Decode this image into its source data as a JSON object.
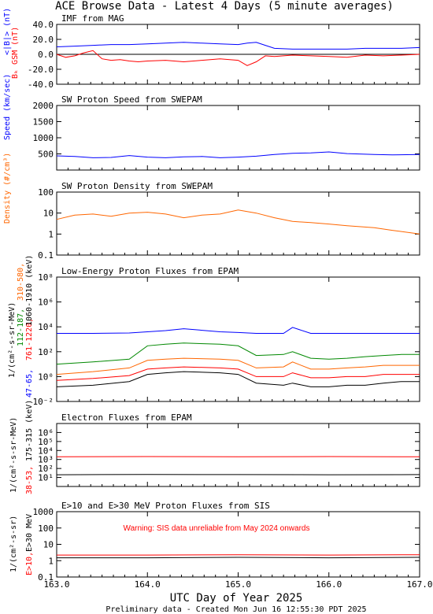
{
  "page": {
    "title": "ACE Browse Data - Latest 4 Days (5 minute averages)",
    "xlabel": "UTC Day of Year 2025",
    "footer": "Preliminary data - Created Mon Jun 16 12:55:30 PDT 2025"
  },
  "chart_data": [
    {
      "type": "line",
      "title": "IMF from MAG",
      "ylabel_parts": [
        {
          "text": "<|B|> (nT)",
          "color": "#0000ff"
        },
        {
          "text": "Bₖ GSM (nT)",
          "color": "#ff0000"
        }
      ],
      "ylim": [
        -40,
        40
      ],
      "yscale": "linear",
      "yticks": [
        -40,
        -20,
        0,
        20,
        40
      ],
      "ytick_labels": [
        "-40.0",
        "-20.0",
        "0.0",
        "20.0",
        "40.0"
      ],
      "zero_line": true,
      "xlim": [
        163.0,
        167.0
      ],
      "series": [
        {
          "color": "#0000ff",
          "x": [
            163.0,
            163.2,
            163.4,
            163.6,
            163.8,
            164.0,
            164.2,
            164.4,
            164.6,
            164.8,
            165.0,
            165.1,
            165.2,
            165.3,
            165.4,
            165.6,
            165.8,
            166.0,
            166.2,
            166.4,
            166.6,
            166.8,
            167.0
          ],
          "y": [
            10,
            11,
            12,
            13,
            13,
            14,
            15,
            16,
            15,
            14,
            13,
            15,
            16,
            12,
            8,
            7,
            7,
            7,
            7,
            8,
            8,
            8,
            9
          ]
        },
        {
          "color": "#ff0000",
          "x": [
            163.0,
            163.1,
            163.2,
            163.3,
            163.4,
            163.5,
            163.6,
            163.7,
            163.8,
            163.9,
            164.0,
            164.2,
            164.4,
            164.6,
            164.8,
            165.0,
            165.1,
            165.2,
            165.3,
            165.4,
            165.5,
            165.6,
            165.8,
            166.0,
            166.2,
            166.4,
            166.6,
            166.8,
            167.0
          ],
          "y": [
            0,
            -4,
            -2,
            2,
            5,
            -6,
            -8,
            -7,
            -9,
            -10,
            -9,
            -8,
            -10,
            -8,
            -6,
            -8,
            -15,
            -10,
            -2,
            -3,
            -2,
            -1,
            -2,
            -3,
            -4,
            -1,
            -2,
            -1,
            0
          ]
        }
      ]
    },
    {
      "type": "line",
      "title": "SW Proton Speed from SWEPAM",
      "ylabel_parts": [
        {
          "text": "Speed (km/sec)",
          "color": "#0000ff"
        }
      ],
      "ylim": [
        0,
        2000
      ],
      "yscale": "linear",
      "yticks": [
        500,
        1000,
        1500,
        2000
      ],
      "ytick_labels": [
        "500",
        "1000",
        "1500",
        "2000"
      ],
      "xlim": [
        163.0,
        167.0
      ],
      "series": [
        {
          "color": "#0000ff",
          "x": [
            163.0,
            163.2,
            163.4,
            163.6,
            163.8,
            164.0,
            164.2,
            164.4,
            164.6,
            164.8,
            165.0,
            165.2,
            165.4,
            165.6,
            165.8,
            166.0,
            166.2,
            166.5,
            166.7,
            167.0
          ],
          "y": [
            440,
            420,
            380,
            390,
            450,
            400,
            380,
            410,
            420,
            380,
            400,
            430,
            480,
            520,
            530,
            560,
            510,
            480,
            470,
            480
          ]
        }
      ]
    },
    {
      "type": "line",
      "title": "SW Proton Density from SWEPAM",
      "ylabel_parts": [
        {
          "text": "Density (#/cm³)",
          "color": "#ff6600"
        }
      ],
      "ylim": [
        0.1,
        100
      ],
      "yscale": "log",
      "yticks": [
        0.1,
        1,
        10,
        100
      ],
      "ytick_labels": [
        "0.1",
        "1",
        "10",
        "100"
      ],
      "xlim": [
        163.0,
        167.0
      ],
      "series": [
        {
          "color": "#ff6600",
          "x": [
            163.0,
            163.2,
            163.4,
            163.6,
            163.8,
            164.0,
            164.2,
            164.4,
            164.6,
            164.8,
            165.0,
            165.2,
            165.4,
            165.6,
            165.8,
            166.0,
            166.2,
            166.5,
            166.7,
            167.0
          ],
          "y": [
            5,
            8,
            9,
            7,
            10,
            11,
            9,
            6,
            8,
            9,
            14,
            10,
            6,
            4,
            3.5,
            3,
            2.5,
            2,
            1.5,
            1
          ]
        }
      ]
    },
    {
      "type": "line",
      "title": "Low-Energy Proton Fluxes from EPAM",
      "ylabel_parts": [
        {
          "text": "47-65,",
          "color": "#0000ff"
        },
        {
          "text": "761-1220,",
          "color": "#ff0000"
        },
        {
          "text": "112-187,",
          "color": "#008800"
        },
        {
          "text": "1060-1910 (keV)",
          "color": "#000000"
        },
        {
          "text": "310-580,",
          "color": "#ff6600"
        },
        {
          "text": "1/(cm²-s-sr-MeV)",
          "color": "#000000"
        }
      ],
      "ylim": [
        0.01,
        100000000
      ],
      "yscale": "log",
      "yticks": [
        0.01,
        1,
        100,
        10000,
        1000000,
        100000000
      ],
      "ytick_labels": [
        "10⁻²",
        "10⁰",
        "10²",
        "10⁴",
        "10⁶",
        "10⁸"
      ],
      "xlim": [
        163.0,
        167.0
      ],
      "series": [
        {
          "color": "#0000ff",
          "x": [
            163.0,
            163.4,
            163.8,
            164.0,
            164.2,
            164.4,
            164.8,
            165.0,
            165.2,
            165.5,
            165.6,
            165.8,
            166.0,
            166.2,
            166.4,
            166.6,
            166.8,
            167.0
          ],
          "y": [
            3000,
            3000,
            3200,
            4000,
            5000,
            7000,
            4000,
            3500,
            3000,
            3000,
            9000,
            3000,
            3000,
            3000,
            3000,
            3000,
            3000,
            3000
          ]
        },
        {
          "color": "#008800",
          "x": [
            163.0,
            163.4,
            163.8,
            164.0,
            164.2,
            164.4,
            164.8,
            165.0,
            165.2,
            165.5,
            165.6,
            165.8,
            166.0,
            166.2,
            166.4,
            166.6,
            166.8,
            167.0
          ],
          "y": [
            10,
            15,
            25,
            300,
            400,
            500,
            400,
            300,
            50,
            60,
            100,
            30,
            25,
            30,
            40,
            50,
            60,
            60
          ]
        },
        {
          "color": "#ff6600",
          "x": [
            163.0,
            163.4,
            163.8,
            164.0,
            164.2,
            164.4,
            164.8,
            165.0,
            165.2,
            165.5,
            165.6,
            165.8,
            166.0,
            166.2,
            166.4,
            166.6,
            166.8,
            167.0
          ],
          "y": [
            1.5,
            2.5,
            5,
            20,
            25,
            30,
            25,
            20,
            5,
            6,
            15,
            4,
            4,
            5,
            6,
            8,
            8,
            8
          ]
        },
        {
          "color": "#ff0000",
          "x": [
            163.0,
            163.4,
            163.8,
            164.0,
            164.2,
            164.4,
            164.8,
            165.0,
            165.2,
            165.5,
            165.6,
            165.8,
            166.0,
            166.2,
            166.4,
            166.6,
            166.8,
            167.0
          ],
          "y": [
            0.5,
            0.7,
            1.2,
            4,
            5,
            6,
            5,
            4,
            1,
            1,
            2,
            0.8,
            0.8,
            1,
            1,
            1.5,
            1.5,
            1.5
          ]
        },
        {
          "color": "#000000",
          "x": [
            163.0,
            163.4,
            163.8,
            164.0,
            164.2,
            164.4,
            164.8,
            165.0,
            165.2,
            165.5,
            165.6,
            165.8,
            166.0,
            166.2,
            166.4,
            166.6,
            166.8,
            167.0
          ],
          "y": [
            0.15,
            0.2,
            0.4,
            1.5,
            2,
            2.5,
            2,
            1.5,
            0.3,
            0.2,
            0.3,
            0.15,
            0.15,
            0.2,
            0.2,
            0.3,
            0.4,
            0.4
          ]
        }
      ]
    },
    {
      "type": "line",
      "title": "Electron Fluxes from EPAM",
      "ylabel_parts": [
        {
          "text": "38-53,",
          "color": "#ff0000"
        },
        {
          "text": "175-315 (keV)",
          "color": "#000000"
        },
        {
          "text": "1/(cm²-s-sr-MeV)",
          "color": "#000000"
        }
      ],
      "ylim": [
        1,
        10000000
      ],
      "yscale": "log",
      "yticks": [
        10,
        100,
        1000,
        10000,
        100000,
        1000000
      ],
      "ytick_labels": [
        "10¹",
        "10²",
        "10³",
        "10⁴",
        "10⁵",
        "10⁶"
      ],
      "xlim": [
        163.0,
        167.0
      ],
      "series": [
        {
          "color": "#ff0000",
          "x": [
            163.0,
            164.0,
            165.0,
            166.0,
            167.0
          ],
          "y": [
            2000,
            2100,
            2000,
            2100,
            2000
          ]
        },
        {
          "color": "#000000",
          "x": [
            163.0,
            164.0,
            165.0,
            166.0,
            167.0
          ],
          "y": [
            20,
            22,
            21,
            20,
            21
          ]
        }
      ]
    },
    {
      "type": "line",
      "title": "E>10 and E>30 MeV Proton Fluxes from SIS",
      "ylabel_parts": [
        {
          "text": "E>10,",
          "color": "#ff0000"
        },
        {
          "text": "E>30 MeV",
          "color": "#000000"
        },
        {
          "text": "1/(cm²-s-sr)",
          "color": "#000000"
        }
      ],
      "annotation": "Warning: SIS data unreliable from May 2024 onwards",
      "ylim": [
        0.1,
        1000
      ],
      "yscale": "log",
      "yticks": [
        0.1,
        1,
        10,
        100,
        1000
      ],
      "ytick_labels": [
        "0.1",
        "1",
        "10",
        "100",
        "1000"
      ],
      "xlim": [
        163.0,
        167.0
      ],
      "xticks": [
        163.0,
        164.0,
        165.0,
        166.0,
        167.0
      ],
      "xtick_labels": [
        "163.0",
        "164.0",
        "165.0",
        "166.0",
        "167.0"
      ],
      "series": [
        {
          "color": "#ff0000",
          "x": [
            163.0,
            164.0,
            165.0,
            166.0,
            167.0
          ],
          "y": [
            2.2,
            2.2,
            2.3,
            2.2,
            2.3
          ]
        },
        {
          "color": "#000000",
          "x": [
            163.0,
            164.0,
            165.0,
            166.0,
            167.0
          ],
          "y": [
            1.5,
            1.5,
            1.6,
            1.5,
            1.6
          ]
        }
      ]
    }
  ]
}
